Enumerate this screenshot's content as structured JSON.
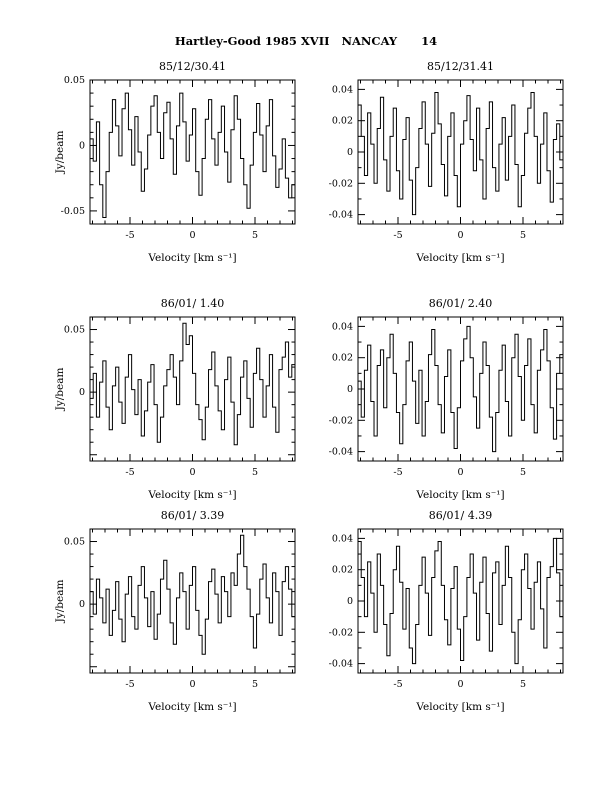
{
  "page": {
    "header": "Hartley-Good 1985 XVII   NANCAY      14"
  },
  "axis": {
    "xlabel": "Velocity [km s⁻¹]",
    "ylabel": "Jy/beam"
  },
  "chart_data": [
    {
      "type": "line",
      "style": "step",
      "title": "85/12/30.41",
      "xlabel": "Velocity [km s⁻¹]",
      "ylabel": "Jy/beam",
      "xlim": [
        -8.2,
        8.2
      ],
      "ylim": [
        -0.06,
        0.05
      ],
      "xticks": [
        -5,
        0,
        5
      ],
      "xtick_labels": [
        "-5",
        "0",
        "5"
      ],
      "xtick_minor": 1,
      "yticks": [
        0.05,
        0,
        -0.05
      ],
      "ytick_labels": [
        "0.05",
        "0",
        "-0.05"
      ],
      "ytick_major_step": 0.05,
      "ytick_minor": 0.01,
      "values": [
        0.005,
        -0.012,
        0.018,
        -0.03,
        -0.055,
        -0.02,
        0.01,
        0.035,
        0.015,
        -0.008,
        0.028,
        0.04,
        0.012,
        -0.015,
        0.022,
        -0.005,
        -0.035,
        -0.018,
        0.008,
        0.03,
        0.038,
        0.01,
        -0.01,
        0.025,
        0.033,
        0.005,
        -0.022,
        0.015,
        0.04,
        0.018,
        -0.012,
        0.008,
        0.028,
        -0.02,
        -0.038,
        -0.01,
        0.02,
        0.035,
        0.005,
        -0.015,
        0.01,
        0.03,
        -0.005,
        -0.028,
        0.012,
        0.038,
        0.02,
        -0.01,
        -0.03,
        -0.048,
        -0.015,
        0.01,
        0.032,
        0.008,
        -0.02,
        0.015,
        0.035,
        -0.008,
        -0.032,
        -0.018,
        0.005,
        -0.025,
        -0.04,
        -0.03
      ]
    },
    {
      "type": "line",
      "style": "step",
      "title": "85/12/31.41",
      "xlabel": "Velocity [km s⁻¹]",
      "xlim": [
        -8.2,
        8.2
      ],
      "ylim": [
        -0.046,
        0.046
      ],
      "xticks": [
        -5,
        0,
        5
      ],
      "xtick_labels": [
        "-5",
        "0",
        "5"
      ],
      "xtick_minor": 1,
      "yticks": [
        0.04,
        0.02,
        0,
        -0.02,
        -0.04
      ],
      "ytick_labels": [
        "0.04",
        "0.02",
        "0",
        "-0.02",
        "-0.04"
      ],
      "ytick_major_step": 0.02,
      "ytick_minor": 0.01,
      "values": [
        0.03,
        0.01,
        -0.015,
        0.025,
        0.005,
        -0.02,
        0.015,
        0.035,
        -0.005,
        -0.025,
        0.01,
        0.028,
        -0.012,
        -0.03,
        0.008,
        0.022,
        -0.018,
        -0.04,
        -0.01,
        0.015,
        0.032,
        0.005,
        -0.022,
        0.012,
        0.038,
        0.018,
        -0.008,
        -0.028,
        0.01,
        0.025,
        -0.015,
        -0.035,
        0.005,
        0.02,
        0.036,
        0.008,
        -0.012,
        0.028,
        -0.005,
        -0.03,
        0.015,
        0.032,
        -0.01,
        -0.025,
        0.005,
        0.022,
        -0.018,
        0.01,
        0.03,
        -0.008,
        -0.035,
        -0.015,
        0.012,
        0.028,
        0.038,
        0.01,
        -0.02,
        0.005,
        0.025,
        -0.012,
        -0.032,
        0.008,
        0.018,
        -0.005
      ]
    },
    {
      "type": "line",
      "style": "step",
      "title": "86/01/ 1.40",
      "xlabel": "Velocity [km s⁻¹]",
      "ylabel": "Jy/beam",
      "xlim": [
        -8.2,
        8.2
      ],
      "ylim": [
        -0.055,
        0.06
      ],
      "xticks": [
        -5,
        0,
        5
      ],
      "xtick_labels": [
        "-5",
        "0",
        "5"
      ],
      "xtick_minor": 1,
      "yticks": [
        0.05,
        0
      ],
      "ytick_labels": [
        "0.05",
        "0"
      ],
      "ytick_major_step": 0.05,
      "ytick_minor": 0.01,
      "values": [
        -0.005,
        0.015,
        -0.02,
        0.008,
        0.025,
        -0.012,
        -0.03,
        0.005,
        0.02,
        -0.008,
        -0.025,
        0.012,
        0.03,
        0.002,
        -0.018,
        0.01,
        -0.035,
        -0.015,
        0.008,
        0.022,
        -0.01,
        -0.04,
        -0.02,
        0.005,
        0.018,
        0.03,
        0.012,
        -0.01,
        0.025,
        0.055,
        0.038,
        0.045,
        0.015,
        -0.01,
        -0.022,
        -0.038,
        -0.012,
        0.018,
        0.032,
        0.005,
        -0.015,
        -0.03,
        0.01,
        0.028,
        -0.008,
        -0.042,
        -0.018,
        0.012,
        0.025,
        -0.005,
        -0.028,
        0.015,
        0.035,
        0.01,
        -0.02,
        0.005,
        0.03,
        -0.012,
        -0.032,
        0.018,
        0.028,
        0.04,
        0.012,
        0.022
      ]
    },
    {
      "type": "line",
      "style": "step",
      "title": "86/01/ 2.40",
      "xlabel": "Velocity [km s⁻¹]",
      "xlim": [
        -8.2,
        8.2
      ],
      "ylim": [
        -0.046,
        0.046
      ],
      "xticks": [
        -5,
        0,
        5
      ],
      "xtick_labels": [
        "-5",
        "0",
        "5"
      ],
      "xtick_minor": 1,
      "yticks": [
        0.04,
        0.02,
        0,
        -0.02,
        -0.04
      ],
      "ytick_labels": [
        "0.04",
        "0.02",
        "0",
        "-0.02",
        "-0.04"
      ],
      "ytick_major_step": 0.02,
      "ytick_minor": 0.01,
      "values": [
        0.005,
        -0.018,
        0.012,
        0.028,
        -0.008,
        -0.03,
        0.015,
        0.025,
        -0.012,
        0.02,
        0.035,
        0.01,
        -0.015,
        -0.035,
        -0.01,
        0.018,
        0.03,
        0.005,
        -0.022,
        0.012,
        -0.03,
        -0.008,
        0.022,
        0.038,
        0.015,
        -0.01,
        -0.028,
        0.008,
        0.025,
        -0.015,
        -0.038,
        -0.012,
        0.018,
        0.032,
        0.04,
        0.02,
        -0.005,
        -0.025,
        0.01,
        0.03,
        0.015,
        -0.018,
        -0.04,
        -0.015,
        0.012,
        0.028,
        -0.008,
        -0.03,
        0.02,
        0.035,
        0.008,
        -0.02,
        0.015,
        0.032,
        -0.01,
        -0.028,
        0.012,
        0.025,
        0.038,
        0.018,
        -0.012,
        -0.032,
        0.01,
        0.022
      ]
    },
    {
      "type": "line",
      "style": "step",
      "title": "86/01/ 3.39",
      "xlabel": "Velocity [km s⁻¹]",
      "ylabel": "Jy/beam",
      "xlim": [
        -8.2,
        8.2
      ],
      "ylim": [
        -0.055,
        0.06
      ],
      "xticks": [
        -5,
        0,
        5
      ],
      "xtick_labels": [
        "-5",
        "0",
        "5"
      ],
      "xtick_minor": 1,
      "yticks": [
        0.05,
        0
      ],
      "ytick_labels": [
        "0.05",
        "0"
      ],
      "ytick_major_step": 0.05,
      "ytick_minor": 0.01,
      "values": [
        0.01,
        -0.008,
        0.02,
        0.005,
        -0.015,
        0.012,
        -0.025,
        -0.005,
        0.018,
        -0.012,
        -0.03,
        0.008,
        0.022,
        -0.01,
        -0.02,
        0.015,
        0.03,
        0.005,
        -0.018,
        0.01,
        -0.028,
        -0.008,
        0.02,
        0.035,
        0.012,
        -0.015,
        -0.032,
        0.005,
        0.025,
        0.01,
        -0.02,
        0.015,
        0.03,
        -0.005,
        -0.025,
        -0.04,
        -0.012,
        0.018,
        0.028,
        0.008,
        -0.015,
        0.022,
        0.01,
        -0.01,
        0.025,
        0.015,
        0.04,
        0.055,
        0.03,
        0.012,
        -0.01,
        -0.035,
        -0.008,
        0.02,
        0.032,
        0.005,
        -0.015,
        0.025,
        0.01,
        -0.025,
        0.018,
        0.03,
        0.012,
        -0.01
      ]
    },
    {
      "type": "line",
      "style": "step",
      "title": "86/01/ 4.39",
      "xlabel": "Velocity [km s⁻¹]",
      "xlim": [
        -8.2,
        8.2
      ],
      "ylim": [
        -0.046,
        0.046
      ],
      "xticks": [
        -5,
        0,
        5
      ],
      "xtick_labels": [
        "-5",
        "0",
        "5"
      ],
      "xtick_minor": 1,
      "yticks": [
        0.04,
        0.02,
        0,
        -0.02,
        -0.04
      ],
      "ytick_labels": [
        "0.04",
        "0.02",
        "0",
        "-0.02",
        "-0.04"
      ],
      "ytick_major_step": 0.02,
      "ytick_minor": 0.01,
      "values": [
        0.038,
        0.015,
        -0.01,
        0.025,
        0.005,
        -0.02,
        0.03,
        0.01,
        -0.015,
        -0.035,
        -0.008,
        0.02,
        0.035,
        0.012,
        -0.018,
        0.008,
        -0.03,
        -0.04,
        -0.015,
        0.01,
        0.028,
        0.005,
        -0.022,
        0.015,
        0.032,
        0.038,
        0.01,
        -0.012,
        -0.028,
        0.008,
        0.022,
        -0.018,
        -0.038,
        -0.01,
        0.015,
        0.03,
        0.005,
        -0.025,
        0.012,
        0.028,
        -0.008,
        -0.032,
        0.018,
        0.025,
        -0.015,
        0.01,
        0.035,
        0.015,
        -0.02,
        -0.04,
        -0.012,
        0.02,
        0.03,
        0.008,
        -0.018,
        0.012,
        0.025,
        -0.005,
        -0.03,
        0.015,
        0.022,
        0.04,
        0.018,
        -0.01
      ]
    }
  ]
}
